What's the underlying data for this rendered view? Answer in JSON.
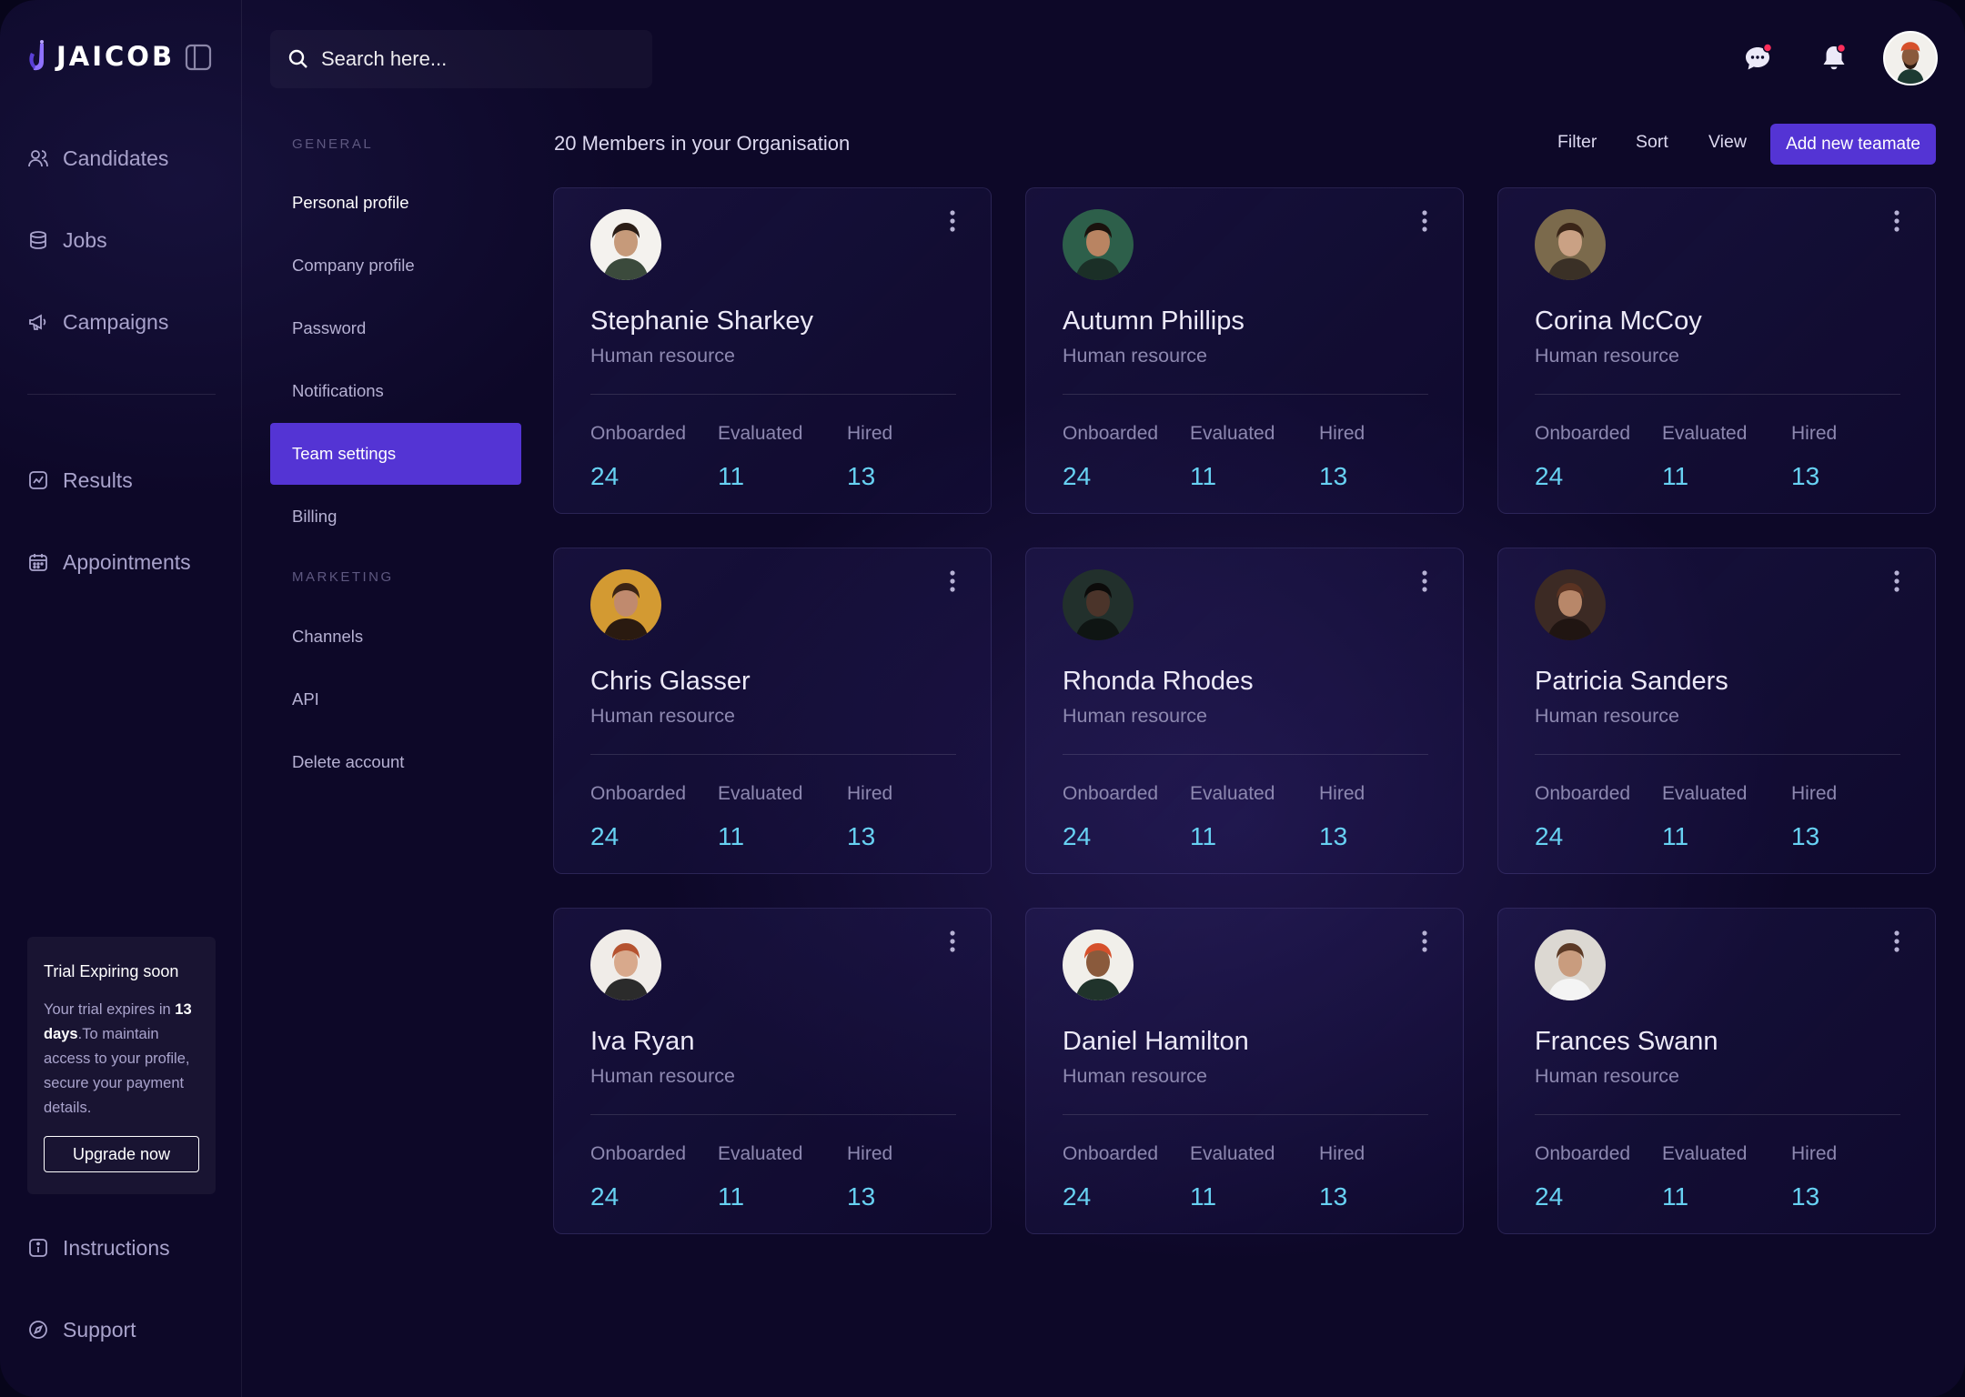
{
  "brand": {
    "name": "JAICOB",
    "logo_icon": "jaicob-logo-icon"
  },
  "colors": {
    "accent": "#5434d4",
    "stat_value": "#67d1f2",
    "background": "#0d0828",
    "notification_dot": "#ff2e5b"
  },
  "nav": {
    "primary": [
      {
        "label": "Candidates",
        "icon": "users-icon"
      },
      {
        "label": "Jobs",
        "icon": "database-icon"
      },
      {
        "label": "Campaigns",
        "icon": "megaphone-icon"
      }
    ],
    "secondary": [
      {
        "label": "Results",
        "icon": "chart-icon"
      },
      {
        "label": "Appointments",
        "icon": "calendar-icon"
      }
    ],
    "footer": [
      {
        "label": "Instructions",
        "icon": "info-icon"
      },
      {
        "label": "Support",
        "icon": "compass-icon"
      }
    ]
  },
  "trial": {
    "title": "Trial Expiring soon",
    "text_before": "Your trial expires in ",
    "days": "13 days",
    "text_after": ".To maintain access to your profile, secure your payment details.",
    "button": "Upgrade now"
  },
  "search": {
    "placeholder": "Search here..."
  },
  "settings_menu": {
    "general_heading": "GENERAL",
    "general_items": [
      "Personal profile",
      "Company profile",
      "Password",
      "Notifications",
      "Team settings",
      "Billing"
    ],
    "active_item": "Team settings",
    "marketing_heading": "MARKETING",
    "marketing_items": [
      "Channels",
      "API",
      "Delete account"
    ]
  },
  "main": {
    "title": "20 Members in your Organisation",
    "filter_label": "Filter",
    "sort_label": "Sort",
    "view_label": "View",
    "add_label": "Add new teamate",
    "stat_labels": {
      "onboarded": "Onboarded",
      "evaluated": "Evaluated",
      "hired": "Hired"
    },
    "members": [
      {
        "name": "Stephanie Sharkey",
        "role": "Human resource",
        "onboarded": "24",
        "evaluated": "11",
        "hired": "13"
      },
      {
        "name": "Autumn Phillips",
        "role": "Human resource",
        "onboarded": "24",
        "evaluated": "11",
        "hired": "13"
      },
      {
        "name": "Corina McCoy",
        "role": "Human resource",
        "onboarded": "24",
        "evaluated": "11",
        "hired": "13"
      },
      {
        "name": "Chris Glasser",
        "role": "Human resource",
        "onboarded": "24",
        "evaluated": "11",
        "hired": "13"
      },
      {
        "name": "Rhonda Rhodes",
        "role": "Human resource",
        "onboarded": "24",
        "evaluated": "11",
        "hired": "13"
      },
      {
        "name": "Patricia Sanders",
        "role": "Human resource",
        "onboarded": "24",
        "evaluated": "11",
        "hired": "13"
      },
      {
        "name": "Iva Ryan",
        "role": "Human resource",
        "onboarded": "24",
        "evaluated": "11",
        "hired": "13"
      },
      {
        "name": "Daniel Hamilton",
        "role": "Human resource",
        "onboarded": "24",
        "evaluated": "11",
        "hired": "13"
      },
      {
        "name": "Frances Swann",
        "role": "Human resource",
        "onboarded": "24",
        "evaluated": "11",
        "hired": "13"
      }
    ]
  }
}
